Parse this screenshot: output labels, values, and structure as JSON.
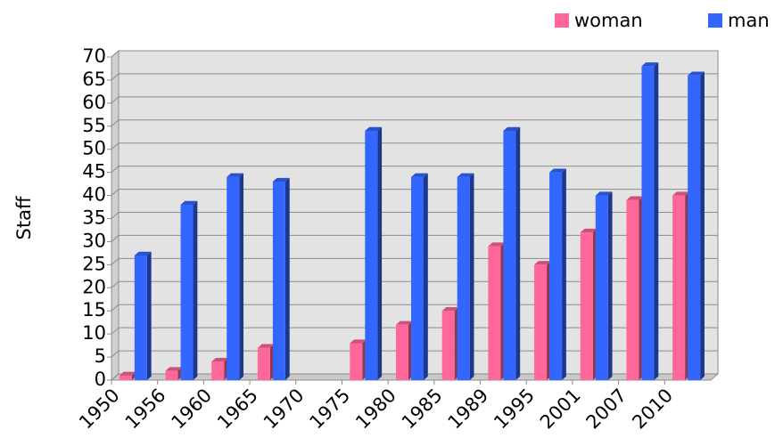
{
  "chart_data": {
    "type": "bar3d",
    "y_label": "Staff",
    "categories": [
      "1950",
      "1956",
      "1960",
      "1965",
      "1970",
      "1975",
      "1980",
      "1985",
      "1989",
      "1995",
      "2001",
      "2007",
      "2010"
    ],
    "series": [
      {
        "name": "woman",
        "color": "#ff6699",
        "values": [
          1,
          2,
          4,
          7,
          null,
          8,
          12,
          15,
          29,
          25,
          32,
          39,
          40
        ]
      },
      {
        "name": "man",
        "color": "#3366ff",
        "values": [
          27,
          38,
          44,
          43,
          null,
          54,
          44,
          44,
          54,
          45,
          40,
          68,
          66
        ]
      }
    ],
    "ylim": [
      0,
      70
    ],
    "yticks": [
      0,
      5,
      10,
      15,
      20,
      25,
      30,
      35,
      40,
      45,
      50,
      55,
      60,
      65,
      70
    ],
    "grid": true,
    "legend": "top-right"
  }
}
